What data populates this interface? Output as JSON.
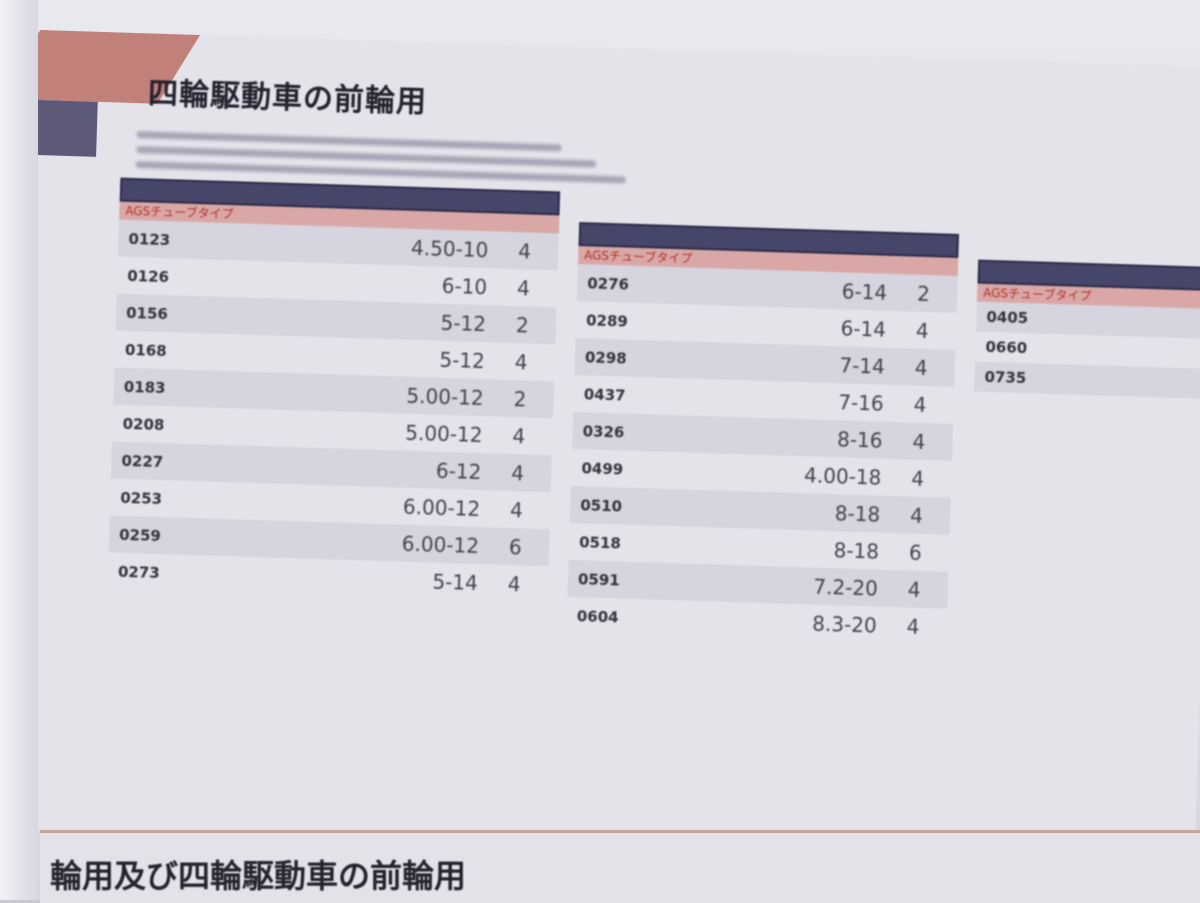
{
  "section": {
    "title": "四輪駆動車の前輪用"
  },
  "tables": [
    {
      "subheader": "AGSチューブタイプ",
      "rows": [
        {
          "code": "0123",
          "size": "4.50-10",
          "ply": "4"
        },
        {
          "code": "0126",
          "size": "6-10",
          "ply": "4"
        },
        {
          "code": "0156",
          "size": "5-12",
          "ply": "2"
        },
        {
          "code": "0168",
          "size": "5-12",
          "ply": "4"
        },
        {
          "code": "0183",
          "size": "5.00-12",
          "ply": "2"
        },
        {
          "code": "0208",
          "size": "5.00-12",
          "ply": "4"
        },
        {
          "code": "0227",
          "size": "6-12",
          "ply": "4"
        },
        {
          "code": "0253",
          "size": "6.00-12",
          "ply": "4"
        },
        {
          "code": "0259",
          "size": "6.00-12",
          "ply": "6"
        },
        {
          "code": "0273",
          "size": "5-14",
          "ply": "4"
        }
      ]
    },
    {
      "subheader": "AGSチューブタイプ",
      "rows": [
        {
          "code": "0276",
          "size": "6-14",
          "ply": "2"
        },
        {
          "code": "0289",
          "size": "6-14",
          "ply": "4"
        },
        {
          "code": "0298",
          "size": "7-14",
          "ply": "4"
        },
        {
          "code": "0437",
          "size": "7-16",
          "ply": "4"
        },
        {
          "code": "0326",
          "size": "8-16",
          "ply": "4"
        },
        {
          "code": "0499",
          "size": "4.00-18",
          "ply": "4"
        },
        {
          "code": "0510",
          "size": "8-18",
          "ply": "4"
        },
        {
          "code": "0518",
          "size": "8-18",
          "ply": "6"
        },
        {
          "code": "0591",
          "size": "7.2-20",
          "ply": "4"
        },
        {
          "code": "0604",
          "size": "8.3-20",
          "ply": "4"
        }
      ]
    },
    {
      "subheader": "AGSチューブタイプ",
      "rows": [
        {
          "code": "0405"
        },
        {
          "code": "0660"
        },
        {
          "code": "0735"
        }
      ]
    }
  ],
  "next_section": {
    "title": "輪用及び四輪駆動車の前輪用"
  }
}
